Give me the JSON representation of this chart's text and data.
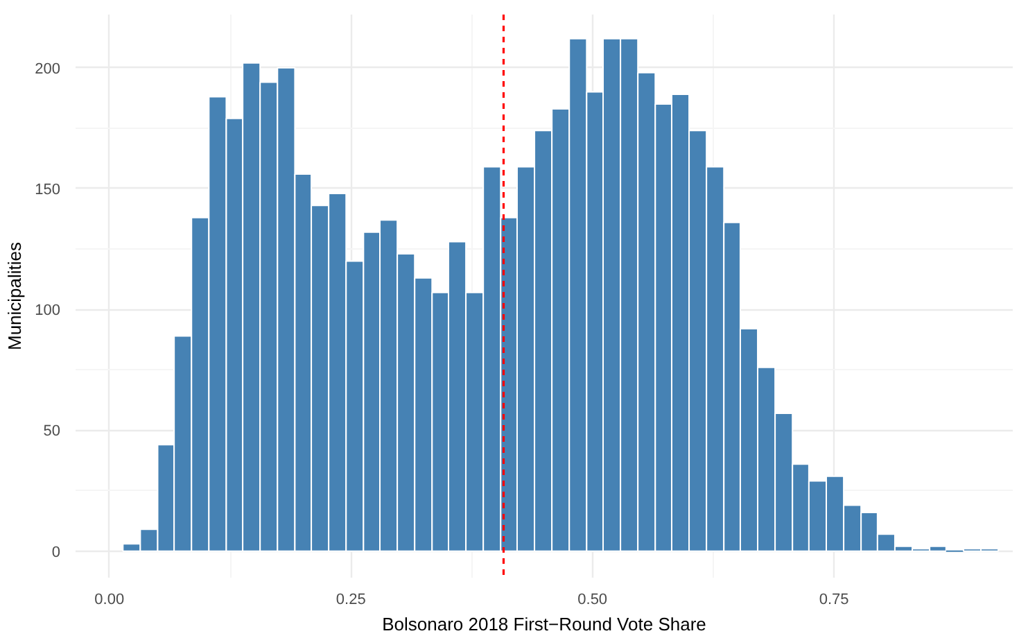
{
  "chart_data": {
    "type": "histogram",
    "xlabel": "Bolsonaro 2018 First−Round Vote Share",
    "ylabel": "Municipalities",
    "color": "#4682b4",
    "bins": [
      0.014,
      0.032,
      0.05,
      0.067,
      0.085,
      0.103,
      0.121,
      0.138,
      0.156,
      0.174,
      0.192,
      0.209,
      0.227,
      0.245,
      0.263,
      0.28,
      0.298,
      0.316,
      0.334,
      0.351,
      0.369,
      0.387,
      0.405,
      0.422,
      0.44,
      0.458,
      0.476,
      0.494,
      0.511,
      0.529,
      0.547,
      0.565,
      0.582,
      0.6,
      0.618,
      0.636,
      0.653,
      0.671,
      0.689,
      0.707,
      0.724,
      0.742,
      0.76,
      0.778,
      0.795,
      0.813,
      0.831,
      0.849,
      0.866,
      0.884,
      0.902,
      0.92
    ],
    "values": [
      3,
      9,
      44,
      89,
      138,
      188,
      179,
      202,
      194,
      200,
      156,
      143,
      148,
      120,
      132,
      137,
      123,
      113,
      107,
      128,
      107,
      159,
      138,
      159,
      174,
      183,
      212,
      190,
      212,
      212,
      198,
      185,
      189,
      174,
      159,
      136,
      92,
      76,
      57,
      36,
      29,
      31,
      19,
      16,
      7,
      2,
      1,
      2,
      0,
      1,
      1
    ],
    "xlim": [
      -0.035,
      0.935
    ],
    "ylim": [
      -11,
      222
    ],
    "xticks": [
      {
        "value": 0,
        "label": "0.00"
      },
      {
        "value": 0.25,
        "label": "0.25"
      },
      {
        "value": 0.5,
        "label": "0.50"
      },
      {
        "value": 0.75,
        "label": "0.75"
      }
    ],
    "yticks": [
      0,
      50,
      100,
      150,
      200
    ],
    "grid": true,
    "ref_lines": [
      {
        "axis": "x",
        "value": 0.408,
        "label": null,
        "color": "#ff0000",
        "line_style": "dashed"
      }
    ]
  }
}
